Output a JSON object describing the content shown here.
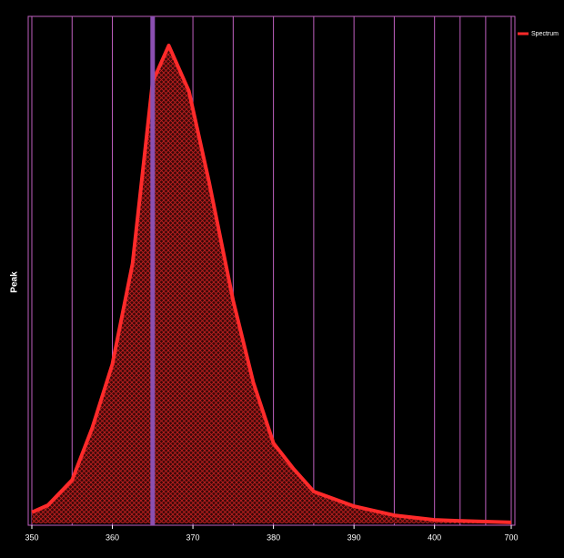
{
  "chart_data": {
    "type": "line",
    "y_label": "Peak",
    "x": [
      350,
      352,
      355,
      357.5,
      360,
      362.5,
      365,
      367,
      369.5,
      372,
      375,
      377.5,
      380,
      382.5,
      385,
      390,
      395,
      400,
      500,
      700
    ],
    "series": [
      {
        "name": "Spectrum",
        "color": "#ff2a2a",
        "values": [
          2.2,
          3.6,
          8.6,
          18.9,
          31.5,
          51.4,
          87.4,
          94.6,
          85.6,
          67.6,
          44.1,
          27.9,
          15.9,
          10.8,
          6.3,
          3.4,
          1.6,
          0.7,
          0.5,
          0.2
        ]
      }
    ],
    "xticks": [
      350,
      360,
      370,
      380,
      390,
      400,
      700
    ],
    "x_gridlines": [
      350,
      355,
      360,
      365,
      370,
      375,
      380,
      385,
      390,
      395,
      400,
      500,
      600,
      700
    ],
    "marker_x": 365,
    "marker_color": "#8a4fb0",
    "grid_color": "#c060c0",
    "ylim": [
      0,
      100
    ],
    "legend": "top-right"
  }
}
